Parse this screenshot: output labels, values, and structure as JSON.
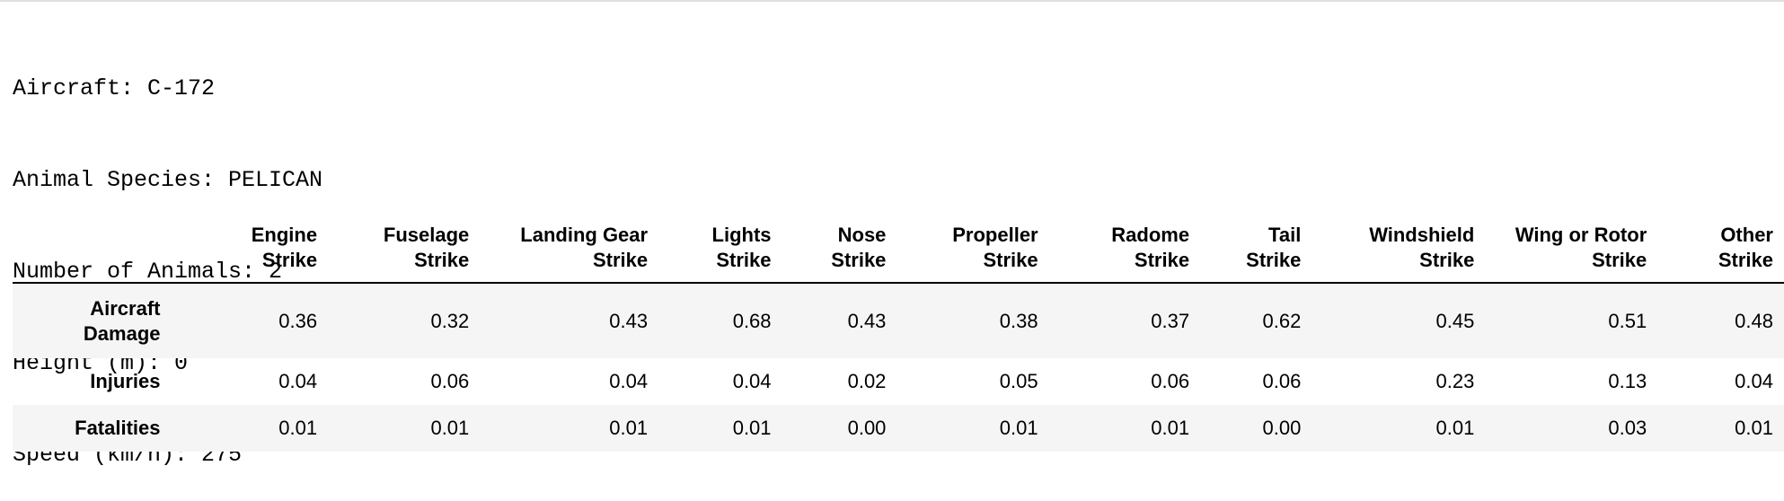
{
  "output": {
    "lines": [
      "Aircraft: C-172",
      "Animal Species: PELICAN",
      "Number of Animals: 2",
      "Height (m): 0",
      "Speed (km/h): 275"
    ]
  },
  "table": {
    "columns": [
      [
        "Engine",
        "Strike"
      ],
      [
        "Fuselage",
        "Strike"
      ],
      [
        "Landing Gear",
        "Strike"
      ],
      [
        "Lights",
        "Strike"
      ],
      [
        "Nose",
        "Strike"
      ],
      [
        "Propeller",
        "Strike"
      ],
      [
        "Radome",
        "Strike"
      ],
      [
        "Tail",
        "Strike"
      ],
      [
        "Windshield",
        "Strike"
      ],
      [
        "Wing or Rotor",
        "Strike"
      ],
      [
        "Other",
        "Strike"
      ]
    ],
    "rows": [
      {
        "label": [
          "Aircraft",
          "Damage"
        ],
        "values": [
          "0.36",
          "0.32",
          "0.43",
          "0.68",
          "0.43",
          "0.38",
          "0.37",
          "0.62",
          "0.45",
          "0.51",
          "0.48"
        ]
      },
      {
        "label": [
          "Injuries"
        ],
        "values": [
          "0.04",
          "0.06",
          "0.04",
          "0.04",
          "0.02",
          "0.05",
          "0.06",
          "0.06",
          "0.23",
          "0.13",
          "0.04"
        ]
      },
      {
        "label": [
          "Fatalities"
        ],
        "values": [
          "0.01",
          "0.01",
          "0.01",
          "0.01",
          "0.00",
          "0.01",
          "0.01",
          "0.00",
          "0.01",
          "0.03",
          "0.01"
        ]
      }
    ]
  }
}
